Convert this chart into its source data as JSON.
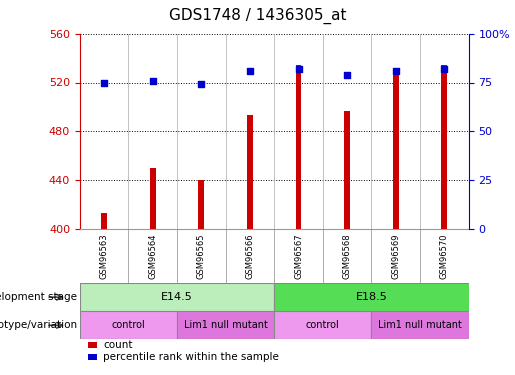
{
  "title": "GDS1748 / 1436305_at",
  "samples": [
    "GSM96563",
    "GSM96564",
    "GSM96565",
    "GSM96566",
    "GSM96567",
    "GSM96568",
    "GSM96569",
    "GSM96570"
  ],
  "counts": [
    413,
    450,
    440,
    493,
    534,
    497,
    527,
    534
  ],
  "percentiles": [
    75,
    76,
    74,
    81,
    82,
    79,
    81,
    82
  ],
  "ylim_left": [
    400,
    560
  ],
  "ylim_right": [
    0,
    100
  ],
  "yticks_left": [
    400,
    440,
    480,
    520,
    560
  ],
  "yticks_right": [
    0,
    25,
    50,
    75,
    100
  ],
  "ytick_labels_right": [
    "0",
    "25",
    "50",
    "75",
    "100%"
  ],
  "bar_color": "#cc0000",
  "dot_color": "#0000cc",
  "bar_width": 0.12,
  "development_stages": [
    {
      "label": "E14.5",
      "start": 0,
      "end": 3,
      "color": "#bbeebb"
    },
    {
      "label": "E18.5",
      "start": 4,
      "end": 7,
      "color": "#55dd55"
    }
  ],
  "genotype_variations": [
    {
      "label": "control",
      "start": 0,
      "end": 1,
      "color": "#ee99ee"
    },
    {
      "label": "Lim1 null mutant",
      "start": 2,
      "end": 3,
      "color": "#dd77dd"
    },
    {
      "label": "control",
      "start": 4,
      "end": 5,
      "color": "#ee99ee"
    },
    {
      "label": "Lim1 null mutant",
      "start": 6,
      "end": 7,
      "color": "#dd77dd"
    }
  ],
  "legend_items": [
    {
      "label": "count",
      "color": "#cc0000"
    },
    {
      "label": "percentile rank within the sample",
      "color": "#0000cc"
    }
  ],
  "background_color": "#ffffff",
  "plot_bg_color": "#ffffff",
  "sample_label_bg": "#cccccc",
  "left_axis_color": "#cc0000",
  "right_axis_color": "#0000cc",
  "title_fontsize": 11,
  "tick_fontsize": 8,
  "label_fontsize": 8
}
